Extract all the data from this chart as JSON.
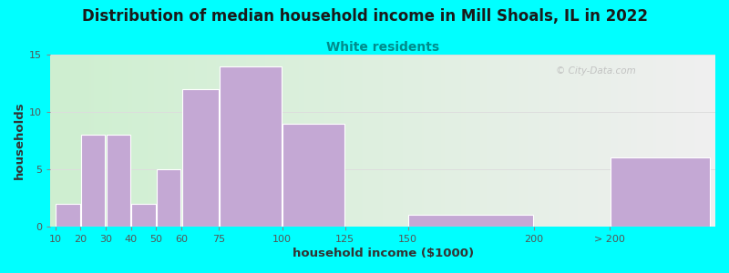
{
  "title": "Distribution of median household income in Mill Shoals, IL in 2022",
  "subtitle": "White residents",
  "xlabel": "household income ($1000)",
  "ylabel": "households",
  "background_color": "#00FFFF",
  "bar_color": "#C4A8D4",
  "bar_edgecolor": "#FFFFFF",
  "title_fontsize": 12,
  "subtitle_fontsize": 10,
  "subtitle_color": "#008B8B",
  "categories": [
    "10",
    "20",
    "30",
    "40",
    "50",
    "60",
    "75",
    "100",
    "125",
    "150",
    "200",
    "> 200"
  ],
  "values": [
    2,
    8,
    8,
    2,
    5,
    12,
    14,
    9,
    0,
    1,
    0,
    6
  ],
  "ylim": [
    0,
    15
  ],
  "yticks": [
    0,
    5,
    10,
    15
  ],
  "watermark": "© City-Data.com",
  "grid_color": "#dddddd",
  "tick_color": "#555555"
}
